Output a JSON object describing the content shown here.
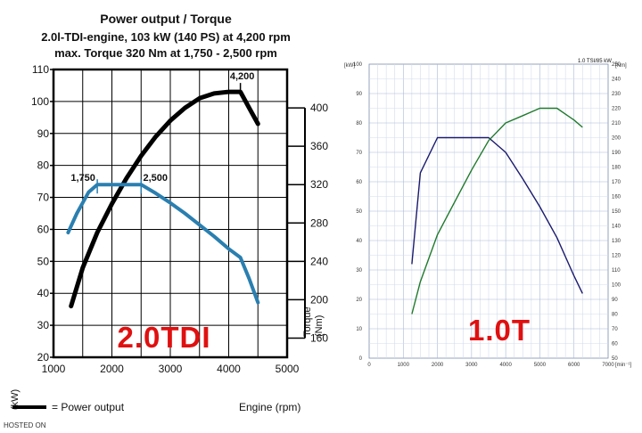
{
  "chart_data": [
    {
      "type": "line",
      "title": "Power output / Torque",
      "subtitle_1": "2.0l-TDI-engine, 103 kW (140 PS) at 4,200 rpm",
      "subtitle_2": "max. Torque 320 Nm at 1,750 - 2,500 rpm",
      "xlabel": "Engine (rpm)",
      "ylabel_left_value": "(kW)",
      "ylabel_right_name": "Torque",
      "ylabel_right_unit": "(Nm)",
      "xlim": [
        1000,
        5000
      ],
      "ylim_left": [
        20,
        110
      ],
      "ylim_right": [
        140,
        440
      ],
      "x_ticks": [
        "1000",
        "2000",
        "3000",
        "4000",
        "5000"
      ],
      "y_ticks_left": [
        "20",
        "30",
        "40",
        "50",
        "60",
        "70",
        "80",
        "90",
        "100",
        "110"
      ],
      "y_ticks_right": [
        "160",
        "200",
        "240",
        "280",
        "320",
        "360",
        "400"
      ],
      "watermark": "2.0TDI",
      "legend_text": "= Power output",
      "legend_prefix": "Power",
      "annotations": [
        "4,200",
        "1,750",
        "2,500"
      ],
      "series": [
        {
          "name": "Power output",
          "axis": "left",
          "color": "#000000",
          "x": [
            1300,
            1500,
            1750,
            2000,
            2250,
            2500,
            2750,
            3000,
            3250,
            3500,
            3750,
            4000,
            4200,
            4350,
            4500
          ],
          "y": [
            36,
            48,
            59,
            68,
            76,
            83,
            89,
            94,
            98,
            101,
            102.5,
            103,
            103,
            98,
            93
          ]
        },
        {
          "name": "Torque",
          "axis": "right",
          "color": "#2a7fb0",
          "x": [
            1250,
            1400,
            1600,
            1750,
            2000,
            2250,
            2500,
            2750,
            3000,
            3250,
            3500,
            3750,
            4000,
            4200,
            4350,
            4500
          ],
          "y": [
            270,
            290,
            312,
            320,
            320,
            320,
            320,
            311,
            301,
            290,
            278,
            266,
            253,
            244,
            222,
            197
          ]
        }
      ]
    },
    {
      "type": "line",
      "title": "1.0 TSI/85 kW",
      "xlabel": "[min⁻¹]",
      "ylabel_left": "[kW]",
      "ylabel_right": "[Nm]",
      "xlim": [
        0,
        7000
      ],
      "ylim_left": [
        0,
        100
      ],
      "ylim_right": [
        50,
        250
      ],
      "x_ticks": [
        "0",
        "1000",
        "2000",
        "3000",
        "4000",
        "5000",
        "6000",
        "7000"
      ],
      "y_ticks_left": [
        "0",
        "10",
        "20",
        "30",
        "40",
        "50",
        "60",
        "70",
        "80",
        "90",
        "100"
      ],
      "y_ticks_right": [
        "50",
        "60",
        "70",
        "80",
        "90",
        "100",
        "110",
        "120",
        "130",
        "140",
        "150",
        "160",
        "170",
        "180",
        "190",
        "200",
        "210",
        "220",
        "230",
        "240",
        "250"
      ],
      "watermark": "1.0T",
      "series": [
        {
          "name": "Torque",
          "axis": "right",
          "color": "#1a1a6e",
          "x": [
            1250,
            1500,
            2000,
            2500,
            3000,
            3500,
            4000,
            4500,
            5000,
            5500,
            6000,
            6250
          ],
          "y": [
            114,
            176,
            200,
            200,
            200,
            200,
            190,
            172,
            153,
            132,
            106,
            94
          ]
        },
        {
          "name": "Power",
          "axis": "left",
          "color": "#1f7a2c",
          "x": [
            1250,
            1500,
            2000,
            2500,
            3000,
            3500,
            4000,
            4500,
            5000,
            5500,
            6000,
            6250
          ],
          "y": [
            15,
            26,
            42,
            53,
            64,
            74,
            80,
            82.5,
            85,
            85,
            81,
            78.5
          ]
        }
      ]
    }
  ],
  "footer_mark": "HOSTED ON"
}
